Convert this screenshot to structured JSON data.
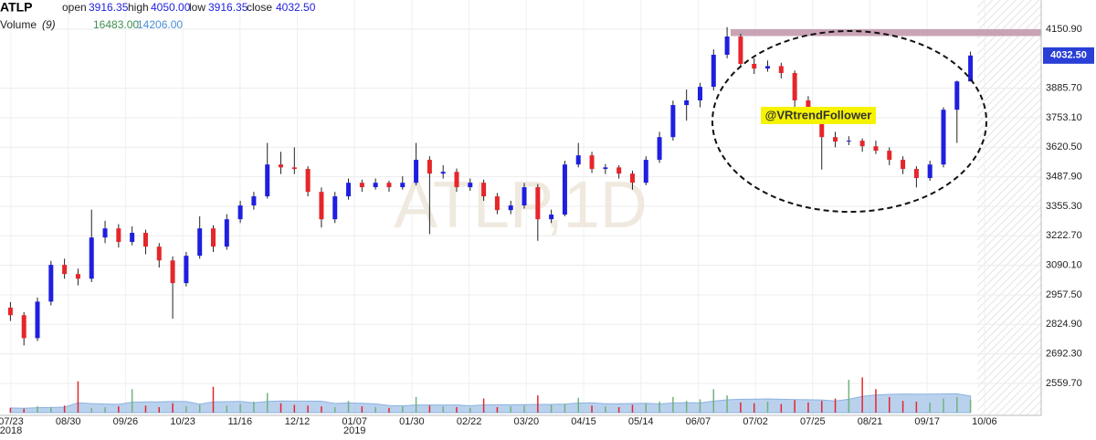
{
  "chart_data": {
    "type": "candlestick",
    "title": "ATLP",
    "header": {
      "open_label": "open",
      "open": "3916.35",
      "high_label": "high",
      "high": "4050.00",
      "low_label": "low",
      "low": "3916.35",
      "close_label": "close",
      "close": "4032.50",
      "volume_label": "Volume",
      "volume_period": "(9)",
      "volume": "16483.00",
      "volume_ma": "14206.00"
    },
    "watermark": "ATLP,1D",
    "annotation": "@VRtrendFollower",
    "last_price_label": "4032.50",
    "resistance_zone": [
      4120,
      4150.9
    ],
    "up_color": "#1f1fe0",
    "down_color": "#e5262b",
    "ylim": [
      2416,
      4200
    ],
    "yticks": [
      {
        "value": 4150.9,
        "label": "4150.90"
      },
      {
        "value": 3885.7,
        "label": "3885.70"
      },
      {
        "value": 3753.1,
        "label": "3753.10"
      },
      {
        "value": 3620.5,
        "label": "3620.50"
      },
      {
        "value": 3487.9,
        "label": "3487.90"
      },
      {
        "value": 3355.3,
        "label": "3355.30"
      },
      {
        "value": 3222.7,
        "label": "3222.70"
      },
      {
        "value": 3090.1,
        "label": "3090.10"
      },
      {
        "value": 2957.5,
        "label": "2957.50"
      },
      {
        "value": 2824.9,
        "label": "2824.90"
      },
      {
        "value": 2692.3,
        "label": "2692.30"
      },
      {
        "value": 2559.7,
        "label": "2559.70"
      }
    ],
    "xtick_labels": [
      "07/23",
      "08/30",
      "09/26",
      "10/23",
      "11/16",
      "12/12",
      "01/07",
      "01/30",
      "02/22",
      "03/20",
      "04/15",
      "05/14",
      "06/07",
      "07/02",
      "07/25",
      "08/21",
      "09/17",
      "10/06"
    ],
    "xtick_years": [
      "2018",
      null,
      null,
      null,
      null,
      null,
      "2019",
      null,
      null,
      null,
      null,
      null,
      null,
      null,
      null,
      null,
      null,
      null
    ],
    "grid": true,
    "candles": [
      [
        2900,
        2925,
        2840,
        2866
      ],
      [
        2866,
        2880,
        2730,
        2763
      ],
      [
        2763,
        2945,
        2750,
        2927
      ],
      [
        2927,
        3110,
        2910,
        3092
      ],
      [
        3092,
        3120,
        3030,
        3051
      ],
      [
        3051,
        3075,
        3000,
        3030
      ],
      [
        3030,
        3340,
        3015,
        3215
      ],
      [
        3215,
        3290,
        3190,
        3256
      ],
      [
        3256,
        3275,
        3170,
        3195
      ],
      [
        3195,
        3265,
        3180,
        3236
      ],
      [
        3236,
        3250,
        3140,
        3174
      ],
      [
        3174,
        3190,
        3080,
        3112
      ],
      [
        3112,
        3130,
        2850,
        3010
      ],
      [
        3010,
        3150,
        2995,
        3133
      ],
      [
        3133,
        3310,
        3120,
        3256
      ],
      [
        3256,
        3270,
        3150,
        3174
      ],
      [
        3174,
        3320,
        3160,
        3297
      ],
      [
        3297,
        3380,
        3280,
        3359
      ],
      [
        3359,
        3420,
        3340,
        3400
      ],
      [
        3400,
        3640,
        3390,
        3543
      ],
      [
        3543,
        3600,
        3500,
        3530
      ],
      [
        3530,
        3620,
        3500,
        3523
      ],
      [
        3523,
        3535,
        3400,
        3420
      ],
      [
        3420,
        3440,
        3260,
        3297
      ],
      [
        3297,
        3420,
        3280,
        3400
      ],
      [
        3400,
        3480,
        3385,
        3461
      ],
      [
        3461,
        3475,
        3420,
        3441
      ],
      [
        3441,
        3480,
        3430,
        3461
      ],
      [
        3461,
        3470,
        3420,
        3441
      ],
      [
        3441,
        3490,
        3430,
        3461
      ],
      [
        3461,
        3640,
        3450,
        3564
      ],
      [
        3564,
        3580,
        3230,
        3502
      ],
      [
        3502,
        3540,
        3480,
        3510
      ],
      [
        3510,
        3525,
        3420,
        3441
      ],
      [
        3441,
        3480,
        3425,
        3461
      ],
      [
        3461,
        3475,
        3380,
        3400
      ],
      [
        3400,
        3415,
        3320,
        3338
      ],
      [
        3338,
        3380,
        3320,
        3359
      ],
      [
        3359,
        3460,
        3345,
        3441
      ],
      [
        3441,
        3455,
        3200,
        3297
      ],
      [
        3297,
        3340,
        3280,
        3318
      ],
      [
        3318,
        3560,
        3310,
        3543
      ],
      [
        3543,
        3640,
        3530,
        3584
      ],
      [
        3584,
        3600,
        3505,
        3523
      ],
      [
        3523,
        3545,
        3500,
        3530
      ],
      [
        3530,
        3540,
        3480,
        3502
      ],
      [
        3502,
        3515,
        3430,
        3461
      ],
      [
        3461,
        3580,
        3450,
        3564
      ],
      [
        3564,
        3690,
        3550,
        3666
      ],
      [
        3666,
        3830,
        3650,
        3810
      ],
      [
        3810,
        3880,
        3740,
        3831
      ],
      [
        3831,
        3910,
        3800,
        3892
      ],
      [
        3892,
        4060,
        3875,
        4036
      ],
      [
        4036,
        4160,
        4020,
        4118
      ],
      [
        4118,
        4130,
        3980,
        3995
      ],
      [
        3995,
        4020,
        3950,
        3974
      ],
      [
        3974,
        4010,
        3960,
        3985
      ],
      [
        3985,
        4000,
        3930,
        3954
      ],
      [
        3954,
        3965,
        3800,
        3831
      ],
      [
        3831,
        3850,
        3740,
        3769
      ],
      [
        3769,
        3790,
        3520,
        3666
      ],
      [
        3666,
        3690,
        3620,
        3646
      ],
      [
        3646,
        3670,
        3630,
        3650
      ],
      [
        3650,
        3660,
        3600,
        3625
      ],
      [
        3625,
        3650,
        3590,
        3605
      ],
      [
        3605,
        3620,
        3540,
        3564
      ],
      [
        3564,
        3580,
        3500,
        3523
      ],
      [
        3523,
        3535,
        3440,
        3482
      ],
      [
        3482,
        3560,
        3470,
        3543
      ],
      [
        3543,
        3800,
        3530,
        3789
      ],
      [
        3789,
        3920,
        3640,
        3916
      ],
      [
        3916.35,
        4050,
        3916.35,
        4032.5
      ]
    ],
    "volumes": [
      6000,
      5000,
      8000,
      7000,
      9000,
      40000,
      6000,
      7000,
      8000,
      30000,
      9000,
      7000,
      12000,
      8000,
      10000,
      33000,
      9000,
      11000,
      14000,
      25000,
      12000,
      10000,
      9000,
      8000,
      7000,
      15000,
      8000,
      7000,
      6000,
      8000,
      20000,
      9000,
      8000,
      7000,
      6000,
      18000,
      7000,
      8000,
      9000,
      22000,
      10000,
      11000,
      19000,
      9000,
      8000,
      7000,
      10000,
      12000,
      14000,
      20000,
      15000,
      17000,
      30000,
      22000,
      13000,
      12000,
      14000,
      11000,
      16000,
      13000,
      15000,
      18000,
      42000,
      45000,
      30000,
      20000,
      15000,
      14000,
      13000,
      18000,
      20000,
      16483
    ],
    "volume_ylim": [
      0,
      70000
    ],
    "volume_up_color": "#6fb37a",
    "volume_down_color": "#e5262b",
    "volume_area_color": "#a9c6ea"
  }
}
